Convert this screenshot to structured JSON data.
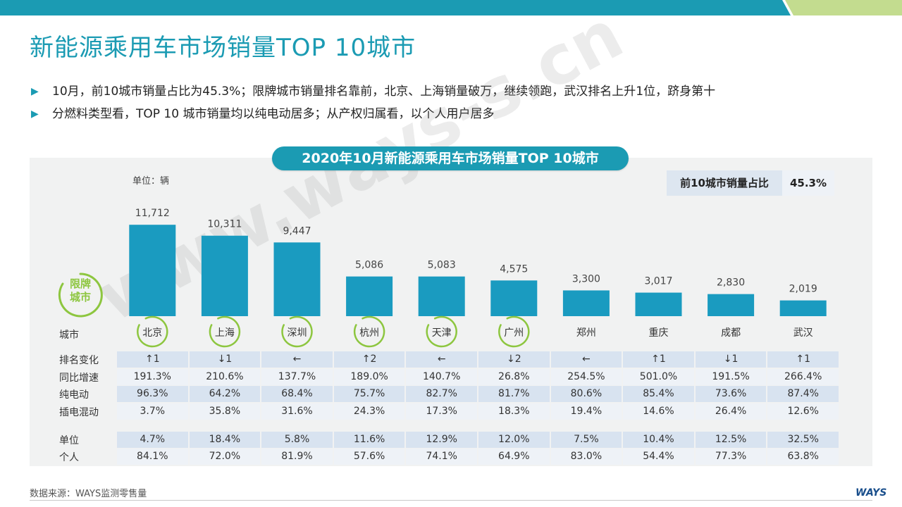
{
  "page": {
    "title": "新能源乘用车市场销量TOP 10城市",
    "bullets": [
      "10月，前10城市销量占比为45.3%；限牌城市销量排名靠前，北京、上海销量破万，继续领跑，武汉排名上升1位，跻身第十",
      "分燃料类型看，TOP 10 城市销量均以纯电动居多；从产权归属看，以个人用户居多"
    ],
    "source": "数据来源：WAYS监测零售量",
    "logo": "WAYS",
    "watermark": "www.ways-s.cn"
  },
  "colors": {
    "accent": "#1b9bb3",
    "green": "#8dc63f",
    "bar": "#1a9bc0"
  },
  "chart_data": {
    "type": "bar",
    "title": "2020年10月新能源乘用车市场销量TOP 10城市",
    "unit_note": "单位：辆",
    "share_label": "前10城市销量占比",
    "share_value": "45.3%",
    "badge_label": "限牌城市",
    "category_label": "城市",
    "categories": [
      "北京",
      "上海",
      "深圳",
      "杭州",
      "天津",
      "广州",
      "郑州",
      "重庆",
      "成都",
      "武汉"
    ],
    "values": [
      11712,
      10311,
      9447,
      5086,
      5083,
      4575,
      3300,
      3017,
      2830,
      2019
    ],
    "value_labels": [
      "11,712",
      "10,311",
      "9,447",
      "5,086",
      "5,083",
      "4,575",
      "3,300",
      "3,017",
      "2,830",
      "2,019"
    ],
    "restricted": [
      true,
      true,
      true,
      true,
      true,
      true,
      false,
      false,
      false,
      false
    ],
    "ylim": [
      0,
      12000
    ],
    "table_rows": [
      {
        "label": "排名变化",
        "values": [
          "↑1",
          "↓1",
          "←",
          "↑2",
          "←",
          "↓2",
          "←",
          "↑1",
          "↓1",
          "↑1"
        ]
      },
      {
        "label": "同比增速",
        "values": [
          "191.3%",
          "210.6%",
          "137.7%",
          "189.0%",
          "140.7%",
          "26.8%",
          "254.5%",
          "501.0%",
          "191.5%",
          "266.4%"
        ]
      },
      {
        "label": "纯电动",
        "values": [
          "96.3%",
          "64.2%",
          "68.4%",
          "75.7%",
          "82.7%",
          "81.7%",
          "80.6%",
          "85.4%",
          "73.6%",
          "87.4%"
        ]
      },
      {
        "label": "插电混动",
        "values": [
          "3.7%",
          "35.8%",
          "31.6%",
          "24.3%",
          "17.3%",
          "18.3%",
          "19.4%",
          "14.6%",
          "26.4%",
          "12.6%"
        ]
      },
      {
        "label": "单位",
        "values": [
          "4.7%",
          "18.4%",
          "5.8%",
          "11.6%",
          "12.9%",
          "12.0%",
          "7.5%",
          "10.4%",
          "12.5%",
          "32.5%"
        ]
      },
      {
        "label": "个人",
        "values": [
          "84.1%",
          "72.0%",
          "81.9%",
          "57.6%",
          "74.1%",
          "64.9%",
          "83.0%",
          "54.4%",
          "77.3%",
          "63.8%"
        ]
      }
    ]
  }
}
